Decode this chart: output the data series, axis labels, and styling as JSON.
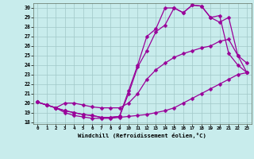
{
  "xlabel": "Windchill (Refroidissement éolien,°C)",
  "bg_color": "#c8ecec",
  "grid_color": "#a0c8c8",
  "line_color": "#990099",
  "xlim": [
    -0.5,
    23.5
  ],
  "ylim": [
    17.8,
    30.5
  ],
  "xticks": [
    0,
    1,
    2,
    3,
    4,
    5,
    6,
    7,
    8,
    9,
    10,
    11,
    12,
    13,
    14,
    15,
    16,
    17,
    18,
    19,
    20,
    21,
    22,
    23
  ],
  "yticks": [
    18,
    19,
    20,
    21,
    22,
    23,
    24,
    25,
    26,
    27,
    28,
    29,
    30
  ],
  "line1_x": [
    0,
    1,
    2,
    3,
    4,
    5,
    6,
    7,
    8,
    9,
    10,
    11,
    12,
    13,
    14,
    15,
    16,
    17,
    18,
    19,
    20,
    21,
    22,
    23
  ],
  "line1_y": [
    20.1,
    19.8,
    19.5,
    19.0,
    18.7,
    18.55,
    18.4,
    18.4,
    18.4,
    18.5,
    18.6,
    18.7,
    18.8,
    19.0,
    19.2,
    19.5,
    20.0,
    20.5,
    21.0,
    21.5,
    22.0,
    22.5,
    23.0,
    23.2
  ],
  "line2_x": [
    0,
    1,
    2,
    3,
    4,
    5,
    6,
    7,
    8,
    9,
    10,
    11,
    12,
    13,
    14,
    15,
    16,
    17,
    18,
    19,
    20,
    21,
    22,
    23
  ],
  "line2_y": [
    20.1,
    19.8,
    19.5,
    20.0,
    20.0,
    19.8,
    19.6,
    19.5,
    19.5,
    19.5,
    20.0,
    21.0,
    22.5,
    23.5,
    24.2,
    24.8,
    25.2,
    25.5,
    25.8,
    26.0,
    26.5,
    26.7,
    25.0,
    23.2
  ],
  "line3_x": [
    0,
    1,
    2,
    3,
    4,
    5,
    6,
    7,
    8,
    9,
    10,
    11,
    12,
    13,
    14,
    15,
    16,
    17,
    18,
    19,
    20,
    21,
    22,
    23
  ],
  "line3_y": [
    20.1,
    19.8,
    19.5,
    19.2,
    19.0,
    18.8,
    18.7,
    18.5,
    18.5,
    18.6,
    21.0,
    23.8,
    25.5,
    27.5,
    28.2,
    30.0,
    29.5,
    30.3,
    30.2,
    29.0,
    28.5,
    29.0,
    25.0,
    24.2
  ],
  "line4_x": [
    0,
    1,
    2,
    3,
    4,
    5,
    6,
    7,
    8,
    9,
    10,
    11,
    12,
    13,
    14,
    15,
    16,
    17,
    18,
    19,
    20,
    21,
    22,
    23
  ],
  "line4_y": [
    20.1,
    19.8,
    19.5,
    19.2,
    19.0,
    18.8,
    18.7,
    18.5,
    18.5,
    18.6,
    21.3,
    24.0,
    27.0,
    27.8,
    30.0,
    30.0,
    29.5,
    30.3,
    30.2,
    29.0,
    29.2,
    25.2,
    24.0,
    23.2
  ],
  "markersize": 2.5,
  "linewidth": 0.9
}
